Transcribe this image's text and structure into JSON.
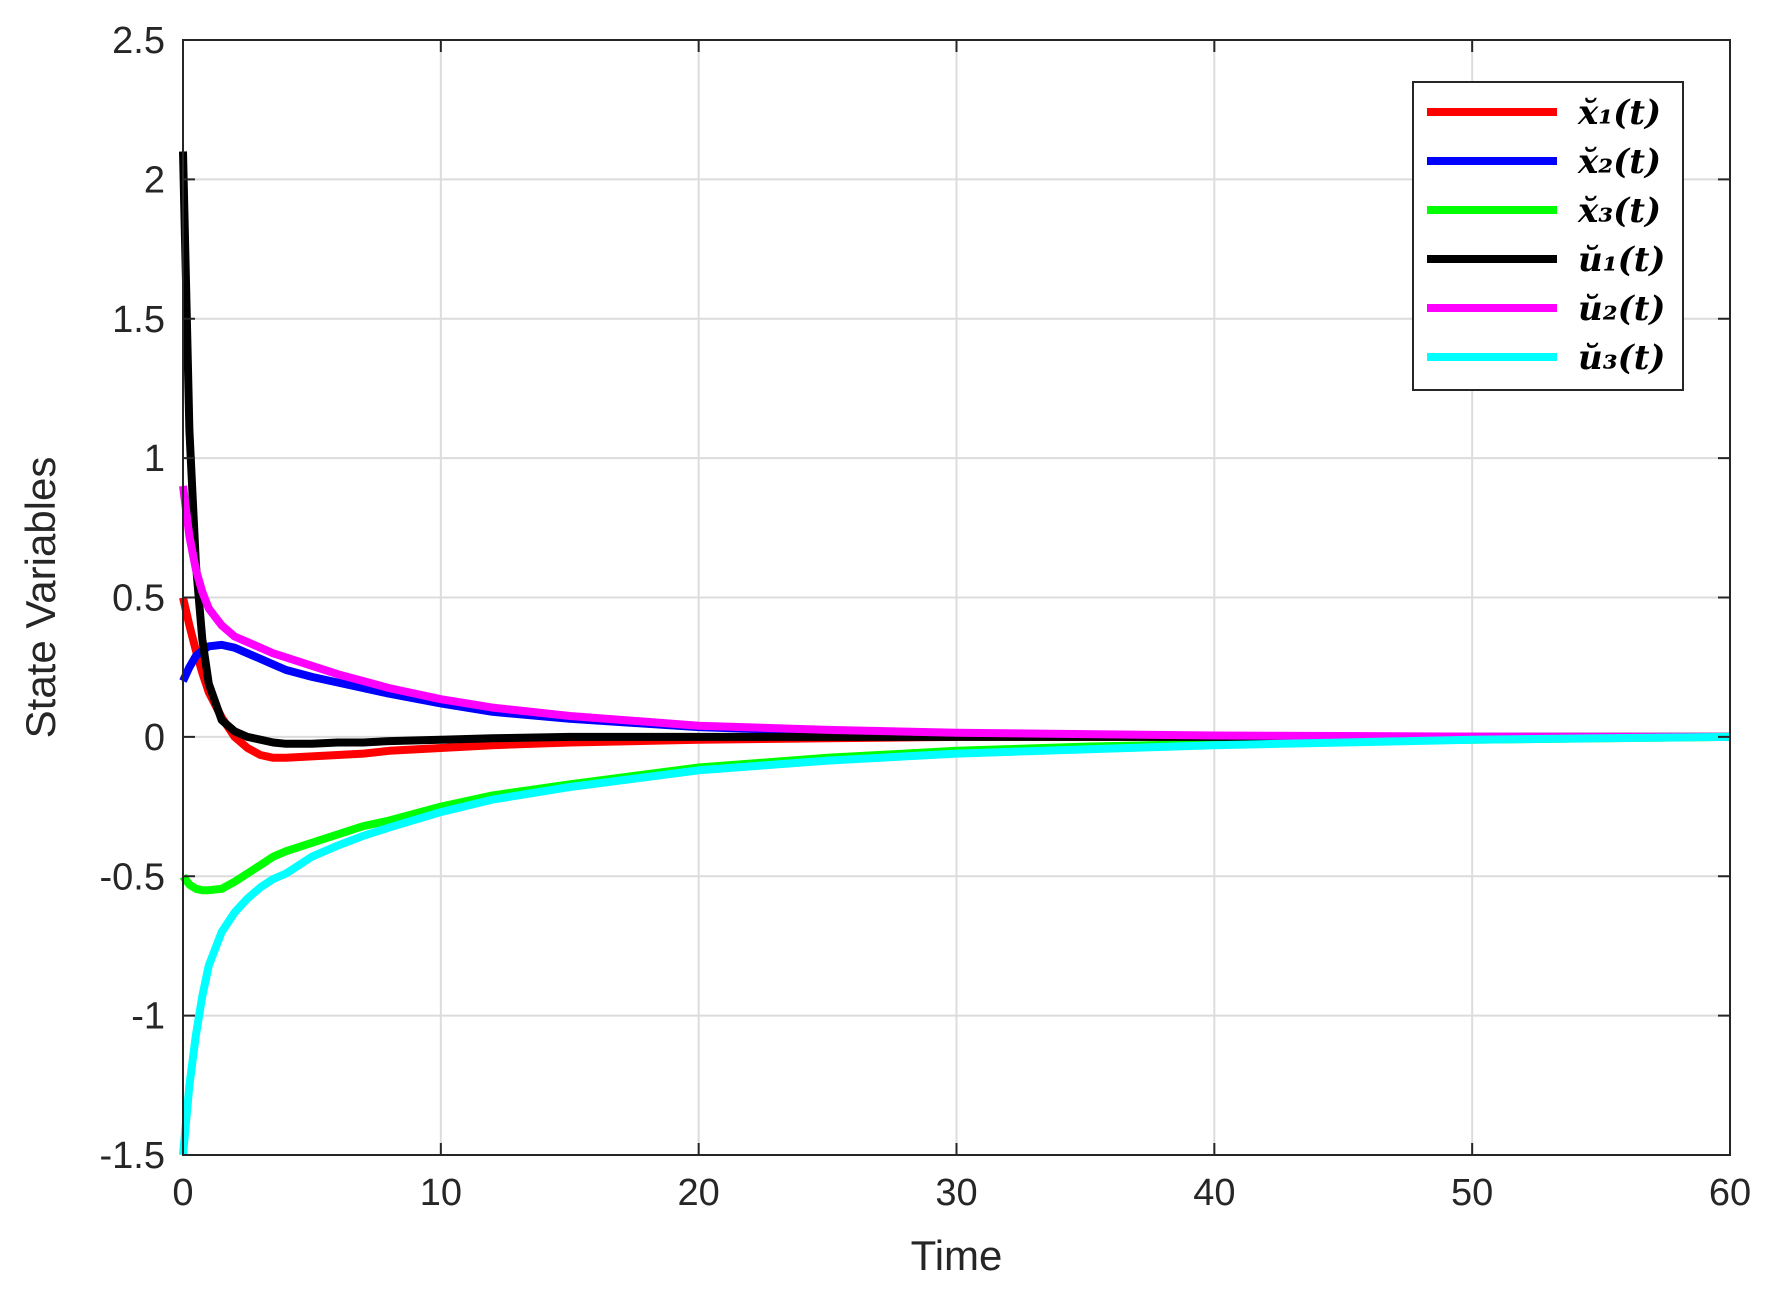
{
  "chart_data": {
    "type": "line",
    "xlabel": "Time",
    "ylabel": "State Variables",
    "xlim": [
      0,
      60
    ],
    "ylim": [
      -1.5,
      2.5
    ],
    "xticks": [
      "0",
      "10",
      "20",
      "30",
      "40",
      "50",
      "60"
    ],
    "yticks": [
      "-1.5",
      "-1",
      "-0.5",
      "0",
      "0.5",
      "1",
      "1.5",
      "2",
      "2.5"
    ],
    "grid": true,
    "legend_position": "top-right",
    "x": [
      0,
      0.25,
      0.5,
      0.75,
      1,
      1.5,
      2,
      2.5,
      3,
      3.5,
      4,
      5,
      6,
      7,
      8,
      10,
      12,
      15,
      20,
      25,
      30,
      35,
      40,
      45,
      50,
      55,
      60
    ],
    "series": [
      {
        "name": "x̆₁(t)",
        "color": "#ff0000",
        "values": [
          0.5,
          0.4,
          0.31,
          0.23,
          0.16,
          0.07,
          0.0,
          -0.04,
          -0.065,
          -0.075,
          -0.075,
          -0.07,
          -0.065,
          -0.06,
          -0.05,
          -0.04,
          -0.03,
          -0.02,
          -0.01,
          -0.005,
          0,
          0,
          0,
          0,
          0,
          0,
          0
        ]
      },
      {
        "name": "x̆₂(t)",
        "color": "#0000ff",
        "values": [
          0.2,
          0.25,
          0.29,
          0.31,
          0.325,
          0.33,
          0.32,
          0.3,
          0.28,
          0.26,
          0.24,
          0.215,
          0.195,
          0.175,
          0.155,
          0.12,
          0.09,
          0.065,
          0.035,
          0.02,
          0.01,
          0.005,
          0.0,
          0,
          0,
          0,
          0
        ]
      },
      {
        "name": "x̆₃(t)",
        "color": "#00ff00",
        "values": [
          -0.5,
          -0.53,
          -0.545,
          -0.55,
          -0.55,
          -0.545,
          -0.52,
          -0.49,
          -0.46,
          -0.43,
          -0.41,
          -0.38,
          -0.35,
          -0.32,
          -0.3,
          -0.25,
          -0.21,
          -0.17,
          -0.11,
          -0.075,
          -0.05,
          -0.035,
          -0.025,
          -0.015,
          -0.01,
          -0.005,
          0
        ]
      },
      {
        "name": "ŭ₁(t)",
        "color": "#000000",
        "values": [
          2.1,
          1.1,
          0.62,
          0.35,
          0.19,
          0.06,
          0.02,
          0.0,
          -0.01,
          -0.02,
          -0.025,
          -0.025,
          -0.02,
          -0.02,
          -0.015,
          -0.01,
          -0.005,
          0.0,
          0.0,
          0,
          0,
          0,
          0,
          0,
          0,
          0,
          0
        ]
      },
      {
        "name": "ŭ₂(t)",
        "color": "#ff00ff",
        "values": [
          0.9,
          0.72,
          0.6,
          0.52,
          0.46,
          0.4,
          0.36,
          0.34,
          0.32,
          0.3,
          0.285,
          0.255,
          0.225,
          0.2,
          0.175,
          0.135,
          0.105,
          0.075,
          0.04,
          0.025,
          0.015,
          0.01,
          0.005,
          0.003,
          0.001,
          0,
          0
        ]
      },
      {
        "name": "ŭ₃(t)",
        "color": "#00ffff",
        "values": [
          -1.5,
          -1.25,
          -1.07,
          -0.93,
          -0.82,
          -0.7,
          -0.63,
          -0.58,
          -0.54,
          -0.51,
          -0.49,
          -0.43,
          -0.39,
          -0.355,
          -0.325,
          -0.27,
          -0.225,
          -0.18,
          -0.12,
          -0.085,
          -0.06,
          -0.045,
          -0.03,
          -0.02,
          -0.01,
          -0.005,
          0
        ]
      }
    ]
  }
}
